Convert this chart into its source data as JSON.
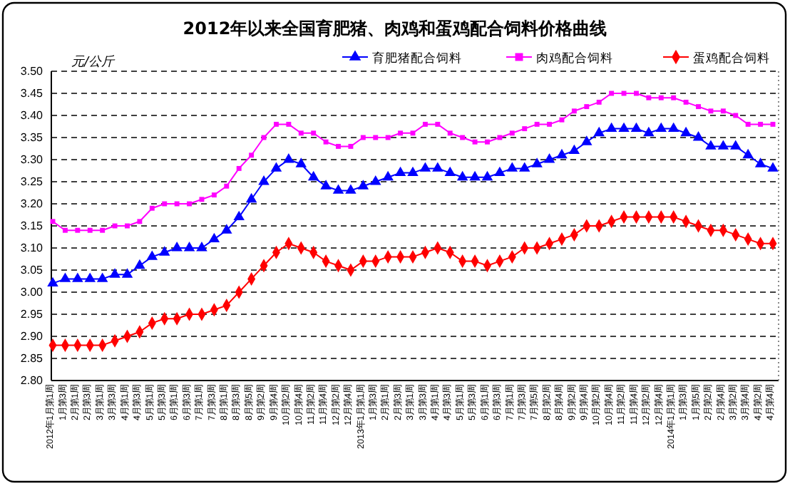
{
  "chart_data": {
    "type": "line",
    "title": "2012年以来全国育肥猪、肉鸡和蛋鸡配合饲料价格曲线",
    "ylabel": "元/公斤",
    "categories": [
      "2012年1月第1周",
      "1月第3周",
      "2月第1周",
      "2月第3周",
      "3月第1周",
      "3月第3周",
      "4月第1周",
      "4月第3周",
      "5月第1周",
      "5月第3周",
      "6月第1周",
      "6月第3周",
      "7月第1周",
      "7月第3周",
      "8月第1周",
      "8月第3周",
      "8月第5周",
      "9月第2周",
      "9月第4周",
      "10月第2周",
      "10月第4周",
      "11月第2周",
      "11月第4周",
      "12月第2周",
      "12月第4周",
      "2013年1月第1周",
      "1月第3周",
      "2月第1周",
      "2月第3周",
      "3月第1周",
      "3月第3周",
      "4月第1周",
      "4月第3周",
      "5月第1周",
      "5月第3周",
      "6月第1周",
      "6月第3周",
      "7月第1周",
      "7月第3周",
      "7月第5周",
      "8月第2周",
      "8月第4周",
      "9月第2周",
      "9月第4周",
      "10月第2周",
      "10月第4周",
      "11月第2周",
      "11月第4周",
      "12月第2周",
      "12月第4周",
      "2014年1月第1周",
      "1月第3周",
      "1月第5周",
      "2月第2周",
      "2月第4周",
      "3月第2周",
      "3月第4周",
      "4月第2周",
      "4月第4周"
    ],
    "series": [
      {
        "name": "育肥猪配合饲料",
        "color": "#0000ff",
        "marker": "triangle",
        "values": [
          3.02,
          3.03,
          3.03,
          3.03,
          3.03,
          3.04,
          3.04,
          3.06,
          3.08,
          3.09,
          3.1,
          3.1,
          3.1,
          3.12,
          3.14,
          3.17,
          3.21,
          3.25,
          3.28,
          3.3,
          3.29,
          3.26,
          3.24,
          3.23,
          3.23,
          3.24,
          3.25,
          3.26,
          3.27,
          3.27,
          3.28,
          3.28,
          3.27,
          3.26,
          3.26,
          3.26,
          3.27,
          3.28,
          3.28,
          3.29,
          3.3,
          3.31,
          3.32,
          3.34,
          3.36,
          3.37,
          3.37,
          3.37,
          3.36,
          3.37,
          3.37,
          3.36,
          3.35,
          3.33,
          3.33,
          3.33,
          3.31,
          3.29,
          3.28
        ]
      },
      {
        "name": "肉鸡配合饲料",
        "color": "#ff00ff",
        "marker": "square",
        "values": [
          3.16,
          3.14,
          3.14,
          3.14,
          3.14,
          3.15,
          3.15,
          3.16,
          3.19,
          3.2,
          3.2,
          3.2,
          3.21,
          3.22,
          3.24,
          3.28,
          3.31,
          3.35,
          3.38,
          3.38,
          3.36,
          3.36,
          3.34,
          3.33,
          3.33,
          3.35,
          3.35,
          3.35,
          3.36,
          3.36,
          3.38,
          3.38,
          3.36,
          3.35,
          3.34,
          3.34,
          3.35,
          3.36,
          3.37,
          3.38,
          3.38,
          3.39,
          3.41,
          3.42,
          3.43,
          3.45,
          3.45,
          3.45,
          3.44,
          3.44,
          3.44,
          3.43,
          3.42,
          3.41,
          3.41,
          3.4,
          3.38,
          3.38,
          3.38
        ]
      },
      {
        "name": "蛋鸡配合饲料",
        "color": "#ff0000",
        "marker": "diamond",
        "values": [
          2.88,
          2.88,
          2.88,
          2.88,
          2.88,
          2.89,
          2.9,
          2.91,
          2.93,
          2.94,
          2.94,
          2.95,
          2.95,
          2.96,
          2.97,
          3.0,
          3.03,
          3.06,
          3.09,
          3.11,
          3.1,
          3.09,
          3.07,
          3.06,
          3.05,
          3.07,
          3.07,
          3.08,
          3.08,
          3.08,
          3.09,
          3.1,
          3.09,
          3.07,
          3.07,
          3.06,
          3.07,
          3.08,
          3.1,
          3.1,
          3.11,
          3.12,
          3.13,
          3.15,
          3.15,
          3.16,
          3.17,
          3.17,
          3.17,
          3.17,
          3.17,
          3.16,
          3.15,
          3.14,
          3.14,
          3.13,
          3.12,
          3.11,
          3.11
        ]
      }
    ],
    "ylim": [
      2.8,
      3.5
    ],
    "yticks": [
      {
        "value": 2.8,
        "label": "2.80"
      },
      {
        "value": 2.85,
        "label": "2.85"
      },
      {
        "value": 2.9,
        "label": "2.90"
      },
      {
        "value": 2.95,
        "label": "2.95"
      },
      {
        "value": 3.0,
        "label": "3.00"
      },
      {
        "value": 3.05,
        "label": "3.05"
      },
      {
        "value": 3.1,
        "label": "3.10"
      },
      {
        "value": 3.15,
        "label": "3.15"
      },
      {
        "value": 3.2,
        "label": "3.20"
      },
      {
        "value": 3.25,
        "label": "3.25"
      },
      {
        "value": 3.3,
        "label": "3.30"
      },
      {
        "value": 3.35,
        "label": "3.35"
      },
      {
        "value": 3.4,
        "label": "3.40"
      },
      {
        "value": 3.45,
        "label": "3.45"
      },
      {
        "value": 3.5,
        "label": "3.50"
      }
    ],
    "grid": "y",
    "legend": "top right"
  }
}
